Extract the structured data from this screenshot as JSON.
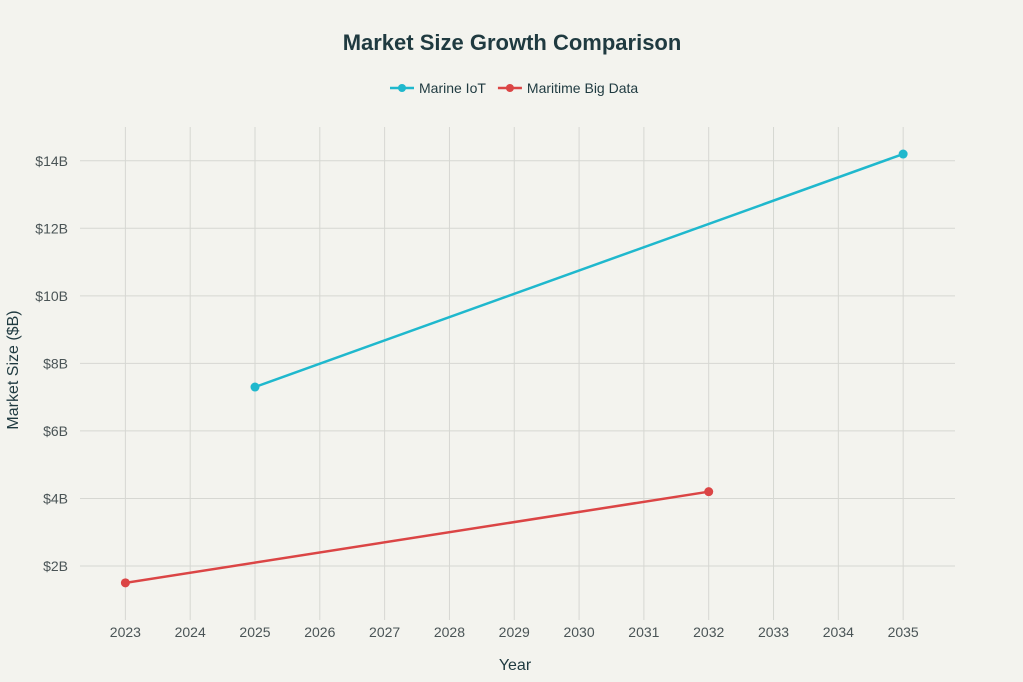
{
  "chart_data": {
    "type": "line",
    "title": "Market Size Growth Comparison",
    "xlabel": "Year",
    "ylabel": "Market Size ($B)",
    "xlim": [
      2022.3,
      2035.8
    ],
    "ylim": [
      0.4,
      15.0
    ],
    "x_ticks": [
      2023,
      2024,
      2025,
      2026,
      2027,
      2028,
      2029,
      2030,
      2031,
      2032,
      2033,
      2034,
      2035
    ],
    "y_ticks": [
      2,
      4,
      6,
      8,
      10,
      12,
      14
    ],
    "y_tick_labels": [
      "$2B",
      "$4B",
      "$6B",
      "$8B",
      "$10B",
      "$12B",
      "$14B"
    ],
    "grid": true,
    "legend_position": "top-center",
    "series": [
      {
        "name": "Marine IoT",
        "color": "#1fb8cd",
        "x": [
          2025,
          2035
        ],
        "y": [
          7.3,
          14.2
        ]
      },
      {
        "name": "Maritime Big Data",
        "color": "#db4545",
        "x": [
          2023,
          2032
        ],
        "y": [
          1.5,
          4.2
        ]
      }
    ]
  }
}
